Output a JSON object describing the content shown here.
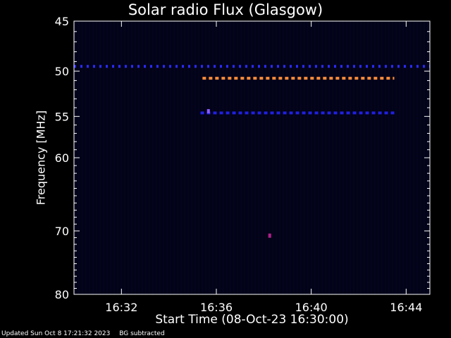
{
  "chart_data": {
    "type": "heatmap",
    "title": "Solar radio Flux (Glasgow)",
    "xlabel": "Start Time (08-Oct-23 16:30:00)",
    "ylabel": "Frequency [MHz]",
    "x_range_minutes": [
      16.5,
      16.75
    ],
    "xlim": [
      "16:30:00",
      "16:45:00"
    ],
    "x_ticks": [
      "16:32",
      "16:36",
      "16:40",
      "16:44"
    ],
    "ylim": [
      45,
      80
    ],
    "y_ticks": [
      45,
      50,
      55,
      60,
      70,
      80
    ],
    "y_scale": "log",
    "grid": false,
    "background_color": "#020218",
    "features": [
      {
        "name": "",
        "freq": 49.5,
        "start": "16:30:00",
        "end": "16:45:00",
        "color": "#2a2aff",
        "style": "dashed"
      },
      {
        "name": "",
        "freq": 50.75,
        "start": "16:35:25",
        "end": "16:43:30",
        "color": "#ff8c3a",
        "style": "dashed"
      },
      {
        "name": "",
        "freq": 54.6,
        "start": "16:35:20",
        "end": "16:43:30",
        "color": "#2020e0",
        "style": "dashed"
      }
    ],
    "spots": [
      {
        "freq": 54.4,
        "time": "16:35:40",
        "color": "#8a5cff"
      },
      {
        "freq": 70.7,
        "time": "16:38:15",
        "color": "#b0208a"
      }
    ]
  },
  "footer": {
    "updated": "Updated Sun Oct  8 17:21:32 2023",
    "note": "BG subtracted"
  }
}
